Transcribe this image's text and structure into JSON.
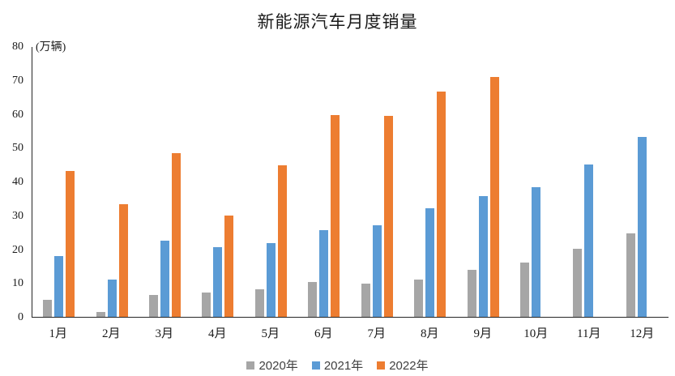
{
  "chart_data": {
    "type": "bar",
    "title": "新能源汽车月度销量",
    "unit_label": "(万辆)",
    "xlabel": "",
    "ylabel": "万辆",
    "categories": [
      "1月",
      "2月",
      "3月",
      "4月",
      "5月",
      "6月",
      "7月",
      "8月",
      "9月",
      "10月",
      "11月",
      "12月"
    ],
    "series": [
      {
        "name": "2020年",
        "color": "#A6A6A6",
        "values": [
          5.0,
          1.5,
          6.5,
          7.2,
          8.2,
          10.4,
          9.9,
          10.9,
          13.8,
          16.0,
          20.0,
          24.7
        ]
      },
      {
        "name": "2021年",
        "color": "#5B9BD5",
        "values": [
          17.9,
          11.1,
          22.6,
          20.6,
          21.7,
          25.6,
          27.1,
          32.1,
          35.6,
          38.3,
          45.0,
          53.1
        ]
      },
      {
        "name": "2022年",
        "color": "#ED7D31",
        "values": [
          43.1,
          33.4,
          48.3,
          29.9,
          44.7,
          59.6,
          59.3,
          66.6,
          70.8,
          null,
          null,
          null
        ]
      }
    ],
    "ylim": [
      0,
      80
    ],
    "yticks": [
      0,
      10,
      20,
      30,
      40,
      50,
      60,
      70,
      80
    ],
    "grid": false,
    "legend_position": "bottom",
    "axis_color": "#262626",
    "background_color": "#FFFFFF"
  }
}
